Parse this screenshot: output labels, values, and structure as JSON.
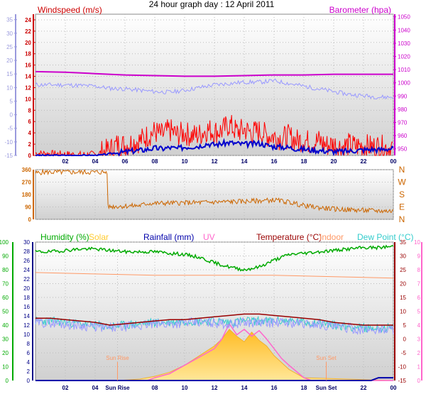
{
  "page": {
    "title": "24 hour graph day : 12 April 2011"
  },
  "colors": {
    "wind_speed": "#ff0000",
    "wind_avg": "#0000cc",
    "barometer": "#cc00cc",
    "temp_bg": "#9999ff",
    "direction": "#cc6600",
    "humidity": "#00aa00",
    "solar": "#ffcc33",
    "rainfall": "#0000aa",
    "uv": "#ff66cc",
    "temperature": "#990000",
    "indoor": "#ff9966",
    "dew_point": "#33cccc"
  },
  "chart_data": [
    {
      "type": "line",
      "labels": {
        "left": "Windspeed (m/s)",
        "right": "Barometer (hpa)"
      },
      "x_ticks": [
        "02",
        "04",
        "06",
        "08",
        "10",
        "12",
        "14",
        "16",
        "18",
        "20",
        "22",
        "00"
      ],
      "y_left_ticks": [
        "0",
        "2",
        "4",
        "6",
        "8",
        "10",
        "12",
        "14",
        "16",
        "18",
        "20",
        "22",
        "24"
      ],
      "y_right_ticks": [
        "950",
        "960",
        "970",
        "980",
        "990",
        "1000",
        "1010",
        "1020",
        "1030",
        "1040",
        "1050"
      ],
      "y_far_left_ticks": [
        "-15",
        "-10",
        "-5",
        "0",
        "5",
        "10",
        "15",
        "20",
        "25",
        "30",
        "35"
      ],
      "xlim": [
        0,
        24
      ],
      "ylim_left": [
        0,
        25
      ],
      "ylim_right": [
        945,
        1052
      ],
      "ylim_far_left": [
        -15,
        37
      ],
      "series": [
        {
          "key": "speed",
          "axis": "left",
          "x": [
            0,
            1,
            2,
            3,
            4,
            4.5,
            5,
            5.5,
            6,
            6.5,
            7,
            7.5,
            8,
            8.5,
            9,
            9.5,
            10,
            10.5,
            11,
            11.5,
            12,
            12.5,
            13,
            13.5,
            14,
            14.5,
            15,
            15.5,
            16,
            16.5,
            17,
            17.5,
            18,
            18.5,
            19,
            19.5,
            20,
            20.5,
            21,
            21.5,
            22,
            22.5,
            23,
            23.5,
            24
          ],
          "y": [
            0.4,
            0.3,
            0.2,
            0.1,
            0.2,
            0.6,
            1.0,
            2.0,
            1.8,
            2.3,
            2.6,
            3.5,
            4.2,
            3.6,
            4.5,
            3.6,
            4.0,
            3.5,
            3.7,
            4.6,
            4.2,
            4.4,
            5.5,
            4.2,
            4.6,
            4.0,
            4.3,
            3.6,
            3.4,
            3.0,
            3.4,
            2.6,
            2.8,
            2.2,
            2.6,
            1.8,
            2.0,
            1.5,
            1.9,
            1.6,
            1.8,
            1.5,
            1.6,
            1.4,
            1.5
          ]
        },
        {
          "key": "average",
          "axis": "left",
          "x": [
            0,
            4,
            4.5,
            5,
            5.5,
            6,
            6.5,
            7,
            7.5,
            8,
            8.5,
            9,
            9.5,
            10,
            10.5,
            11,
            11.5,
            12,
            12.5,
            13,
            13.5,
            14,
            14.5,
            15,
            15.5,
            16,
            16.5,
            17,
            17.5,
            18,
            18.5,
            19,
            19.5,
            20,
            20.5,
            21,
            21.5,
            22,
            22.5,
            23,
            23.5,
            24
          ],
          "y": [
            0,
            0,
            0.1,
            0.3,
            0.5,
            0.6,
            0.8,
            0.9,
            1.1,
            1.3,
            1.2,
            1.4,
            1.2,
            1.5,
            1.6,
            1.7,
            2.1,
            1.9,
            2.1,
            2.3,
            2.1,
            2.0,
            2.0,
            2.2,
            1.8,
            1.6,
            1.5,
            1.4,
            1.2,
            1.1,
            1.0,
            0.9,
            0.8,
            0.7,
            0.7,
            0.8,
            0.9,
            1.0,
            1.1,
            1.0,
            1.2,
            1.2
          ]
        },
        {
          "key": "barometer",
          "axis": "right",
          "x": [
            0,
            2,
            4,
            6,
            8,
            10,
            12,
            14,
            16,
            18,
            20,
            22,
            24
          ],
          "y": [
            1008.5,
            1008,
            1007,
            1006,
            1005.5,
            1005,
            1005,
            1005.5,
            1006,
            1006,
            1006.5,
            1006.5,
            1006.5
          ]
        },
        {
          "key": "temperature_background",
          "axis": "far_left",
          "x": [
            0,
            2,
            4,
            5,
            6,
            8,
            9,
            10,
            11,
            12,
            13,
            14,
            15,
            16,
            17,
            18,
            19,
            20,
            21,
            22,
            23,
            24
          ],
          "y": [
            11,
            11,
            10.5,
            9.7,
            9.5,
            8.5,
            8.3,
            9,
            10,
            11,
            11.5,
            12,
            12,
            12.5,
            11.5,
            10.5,
            9.5,
            8.5,
            7.5,
            7,
            6.5,
            6.5
          ]
        }
      ]
    },
    {
      "type": "line",
      "y_ticks": [
        "0",
        "90",
        "180",
        "270",
        "360"
      ],
      "compass_labels": [
        "N",
        "W",
        "S",
        "E",
        "N"
      ],
      "ylim": [
        0,
        360
      ],
      "xlim": [
        0,
        24
      ],
      "series": [
        {
          "key": "direction",
          "x": [
            0,
            0.5,
            4.8,
            4.85,
            7,
            7.5,
            9,
            10,
            11,
            12,
            13,
            14,
            15,
            16,
            17,
            18,
            19,
            20,
            21,
            22,
            23,
            24
          ],
          "y": [
            335,
            342,
            342,
            92,
            100,
            115,
            118,
            120,
            122,
            125,
            128,
            130,
            135,
            140,
            125,
            100,
            85,
            75,
            70,
            65,
            62,
            60
          ]
        }
      ]
    },
    {
      "type": "line",
      "labels": [
        "Humidity (%)",
        "Solar",
        "Rainfall (mm)",
        "UV",
        "Temperature (°C)",
        "Indoor",
        "Dew Point (°C)"
      ],
      "annotations": [
        "Sun Rise",
        "Sun Set"
      ],
      "x_ticks": [
        "02",
        "04",
        "Sun Rise",
        "08",
        "10",
        "12",
        "14",
        "16",
        "18",
        "Sun Set",
        "22",
        "00"
      ],
      "y_humidity_ticks": [
        "0",
        "10",
        "20",
        "30",
        "40",
        "50",
        "60",
        "70",
        "80",
        "90",
        "100"
      ],
      "y_rain_ticks": [
        "0",
        "2",
        "4",
        "6",
        "8",
        "10",
        "12",
        "14",
        "16",
        "18",
        "20",
        "22",
        "24",
        "26",
        "28",
        "30"
      ],
      "y_temp_ticks": [
        "-15",
        "-10",
        "-5",
        "0",
        "5",
        "10",
        "15",
        "20",
        "25",
        "30",
        "35"
      ],
      "y_uv_ticks": [
        "0",
        "1",
        "2",
        "3",
        "4",
        "5",
        "6",
        "7",
        "8",
        "9",
        "10"
      ],
      "ylim_humidity": [
        0,
        100
      ],
      "ylim_temp": [
        -15,
        35
      ],
      "ylim_uv": [
        0,
        10
      ],
      "xlim": [
        0,
        24
      ],
      "series": [
        {
          "key": "humidity",
          "axis": "humidity",
          "x": [
            0,
            1,
            2,
            3,
            4,
            5,
            6,
            7,
            8,
            9,
            10,
            11,
            12,
            13,
            14,
            15,
            16,
            17,
            18,
            19,
            20,
            21,
            22,
            23,
            24
          ],
          "y": [
            93,
            93,
            94,
            95,
            95,
            94,
            93,
            93,
            93,
            92,
            91,
            89,
            85,
            82,
            80,
            82,
            87,
            91,
            92,
            93,
            94,
            95,
            96,
            96,
            97
          ]
        },
        {
          "key": "indoor",
          "axis": "humidity",
          "x": [
            0,
            4,
            8,
            12,
            16,
            20,
            24
          ],
          "y": [
            78,
            77,
            76,
            76,
            76,
            75,
            74
          ]
        },
        {
          "key": "temperature",
          "axis": "temp",
          "x": [
            0,
            1,
            2,
            3,
            4,
            5,
            6,
            7,
            8,
            9,
            10,
            11,
            12,
            13,
            14,
            15,
            16,
            17,
            18,
            19,
            20,
            21,
            22,
            23,
            24
          ],
          "y": [
            7.5,
            7.5,
            7,
            6.5,
            6,
            5,
            5.5,
            6,
            6.5,
            7,
            7,
            7.5,
            8,
            8.5,
            9,
            9,
            8.5,
            8,
            7.5,
            7,
            6,
            5.5,
            5,
            5,
            5
          ]
        },
        {
          "key": "dew_point",
          "axis": "temp",
          "x": [
            0,
            1,
            2,
            3,
            4,
            5,
            6,
            7,
            8,
            9,
            10,
            11,
            12,
            13,
            14,
            15,
            16,
            17,
            18,
            19,
            20,
            21,
            22,
            23,
            24
          ],
          "y": [
            6.5,
            6.5,
            6,
            5.5,
            5,
            4.5,
            5,
            5.5,
            6,
            6,
            6.5,
            6.5,
            6.5,
            6,
            6.5,
            6.5,
            6.5,
            6.5,
            6,
            6,
            5,
            4.5,
            4,
            4,
            4
          ]
        },
        {
          "key": "solar",
          "axis": "uv",
          "x": [
            0,
            5.5,
            7,
            8,
            9,
            10,
            11,
            12,
            12.5,
            13,
            13.5,
            14,
            14.5,
            15,
            15.5,
            16,
            17,
            18,
            24
          ],
          "y": [
            0,
            0,
            0.1,
            0.3,
            0.6,
            1.1,
            1.8,
            2.5,
            3.0,
            3.7,
            3.2,
            2.8,
            3.5,
            2.9,
            2.5,
            1.8,
            0.8,
            0.2,
            0
          ]
        },
        {
          "key": "uv",
          "axis": "uv",
          "x": [
            0,
            7.5,
            8,
            9,
            10,
            11,
            12,
            12.5,
            13,
            13.5,
            14,
            14.5,
            15,
            15.5,
            16,
            16.5,
            17,
            18,
            18.5,
            24
          ],
          "y": [
            0,
            0,
            0.2,
            0.5,
            1.1,
            1.7,
            2.3,
            3.0,
            4.1,
            3.3,
            3.7,
            3.2,
            3.6,
            3.0,
            2.3,
            1.6,
            1.1,
            0.2,
            0,
            0
          ]
        },
        {
          "key": "rainfall",
          "axis": "rain",
          "x": [
            0,
            22.5,
            23,
            24
          ],
          "y": [
            0,
            0,
            0.6,
            0.6
          ]
        }
      ]
    }
  ]
}
